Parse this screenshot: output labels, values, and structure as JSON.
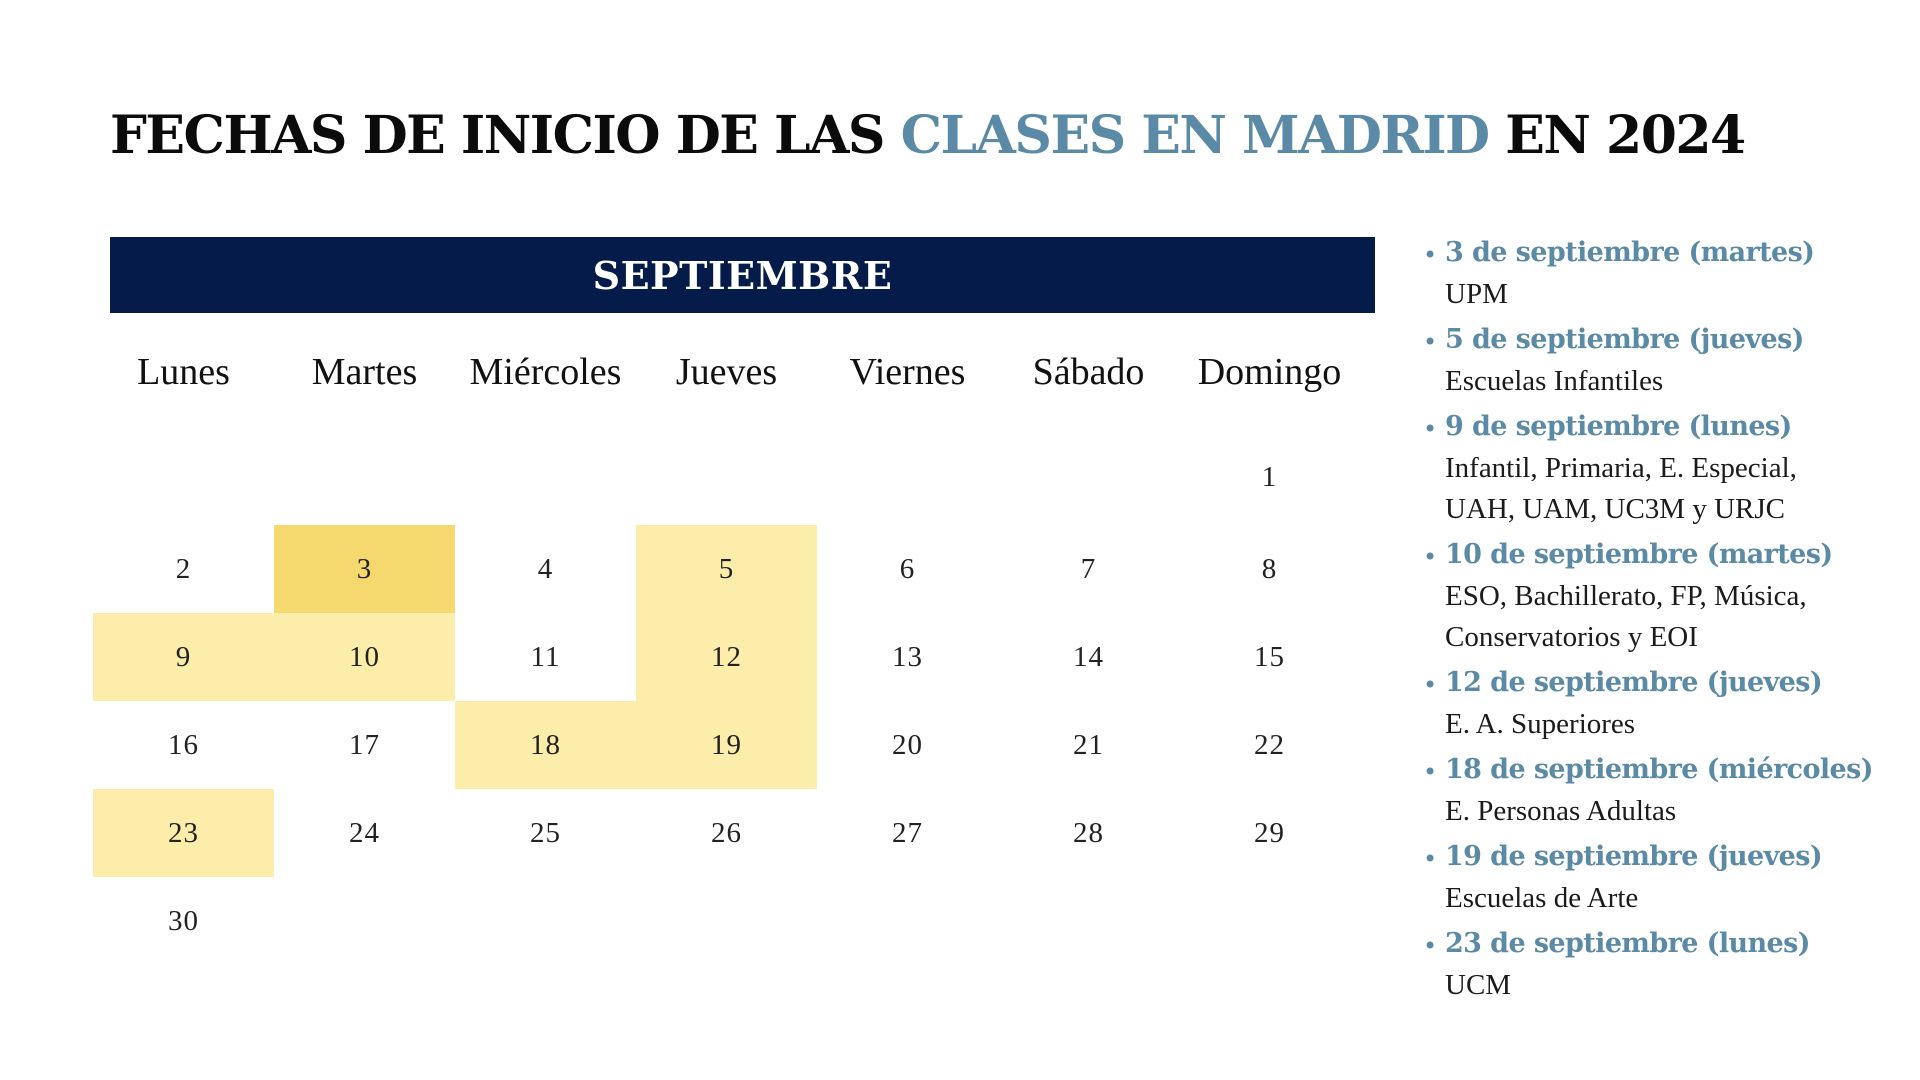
{
  "title": {
    "part1": "FECHAS DE INICIO DE LAS ",
    "accent": "CLASES EN  MADRID",
    "part2": " EN 2024"
  },
  "calendar": {
    "month": "SEPTIEMBRE",
    "weekdays": [
      "Lunes",
      "Martes",
      "Miércoles",
      "Jueves",
      "Viernes",
      "Sábado",
      "Domingo"
    ],
    "weeks": [
      [
        "",
        "",
        "",
        "",
        "",
        "",
        "1"
      ],
      [
        "2",
        "3",
        "4",
        "5",
        "6",
        "7",
        "8"
      ],
      [
        "9",
        "10",
        "11",
        "12",
        "13",
        "14",
        "15"
      ],
      [
        "16",
        "17",
        "18",
        "19",
        "20",
        "21",
        "22"
      ],
      [
        "23",
        "24",
        "25",
        "26",
        "27",
        "28",
        "29"
      ],
      [
        "30",
        "",
        "",
        "",
        "",
        "",
        ""
      ]
    ],
    "highlighted_days": [
      3,
      5,
      9,
      10,
      12,
      18,
      19,
      23
    ],
    "strong_highlight_day": 3,
    "colors": {
      "banner": "#051b4a",
      "highlight": "#fdedab",
      "highlight_strong": "#f5d96e",
      "accent": "#5b8aa6"
    }
  },
  "events": [
    {
      "date": "3 de septiembre (martes)",
      "desc": "UPM"
    },
    {
      "date": "5 de septiembre (jueves)",
      "desc": "Escuelas Infantiles"
    },
    {
      "date": "9 de septiembre (lunes)",
      "desc": "Infantil, Primaria, E. Especial,\nUAH, UAM, UC3M y URJC"
    },
    {
      "date": "10 de septiembre (martes)",
      "desc": "ESO, Bachillerato, FP, Música,\nConservatorios y EOI"
    },
    {
      "date": "12 de septiembre (jueves)",
      "desc": "E. A. Superiores"
    },
    {
      "date": "18 de septiembre (miércoles)",
      "desc": "E. Personas Adultas"
    },
    {
      "date": "19 de septiembre (jueves)",
      "desc": "Escuelas de Arte"
    },
    {
      "date": "23 de septiembre (lunes)",
      "desc": "UCM"
    }
  ]
}
